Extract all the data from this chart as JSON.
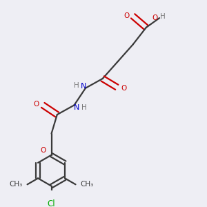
{
  "bg_color": "#eeeef4",
  "bond_color": "#3a3a3a",
  "o_color": "#cc0000",
  "n_color": "#0000cc",
  "cl_color": "#00aa00",
  "line_width": 1.6,
  "figsize": [
    3.0,
    3.0
  ],
  "dpi": 100,
  "xlim": [
    0,
    10
  ],
  "ylim": [
    0,
    10
  ]
}
